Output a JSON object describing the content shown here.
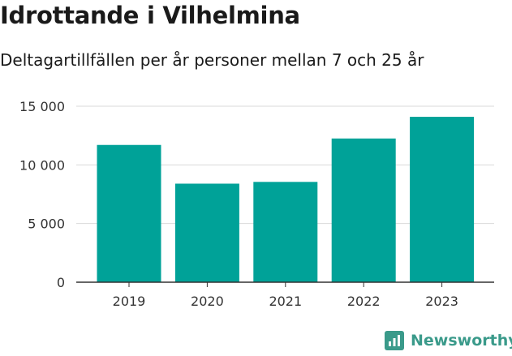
{
  "title": "Idrottande i Vilhelmina",
  "subtitle": "Deltagartillfällen per år personer mellan 7 och 25 år",
  "brand": {
    "name": "Newsworthy",
    "color": "#3a9a8a",
    "icon": "newsworthy-logo-icon"
  },
  "chart_data": {
    "type": "bar",
    "title": "Idrottande i Vilhelmina",
    "subtitle": "Deltagartillfällen per år personer mellan 7 och 25 år",
    "categories": [
      "2019",
      "2020",
      "2021",
      "2022",
      "2023"
    ],
    "values": [
      11700,
      8400,
      8550,
      12250,
      14100
    ],
    "xlabel": "",
    "ylabel": "",
    "ylim": [
      0,
      15000
    ],
    "yticks": [
      0,
      5000,
      10000,
      15000
    ],
    "ytick_labels": [
      "0",
      "5 000",
      "10 000",
      "15 000"
    ],
    "bar_color": "#00a298",
    "grid": true,
    "legend": "none"
  }
}
